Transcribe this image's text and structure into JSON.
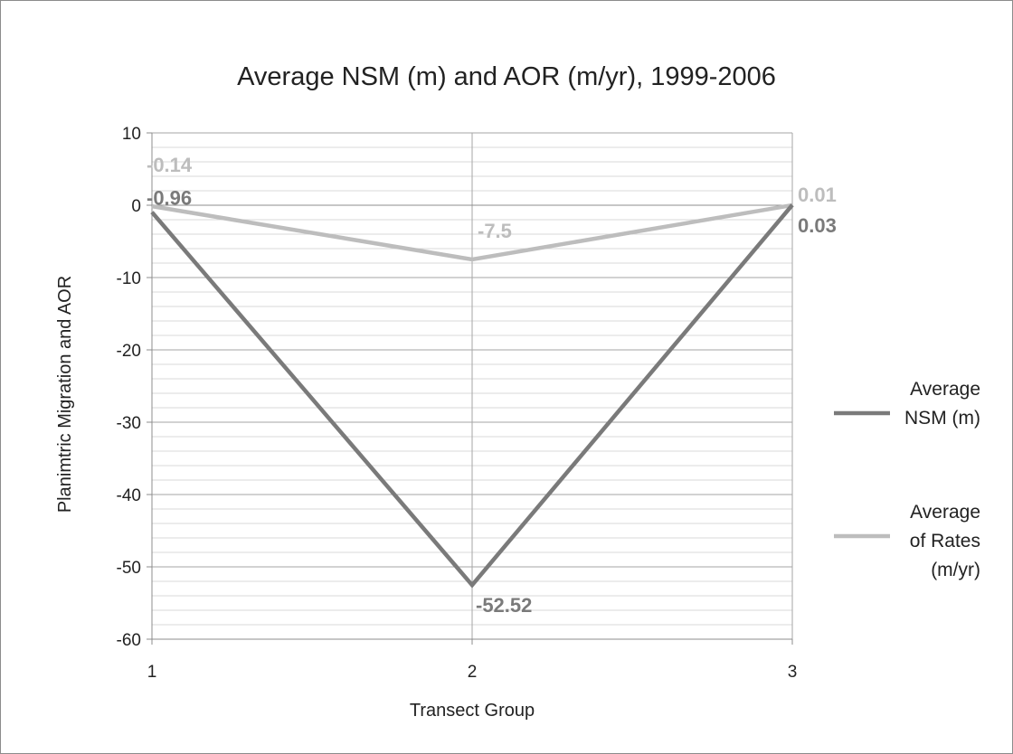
{
  "chart_data": {
    "type": "line",
    "title": "Average NSM (m) and AOR (m/yr), 1999-2006",
    "xlabel": "Transect Group",
    "ylabel": "Planimtric Migration and AOR",
    "categories": [
      "1",
      "2",
      "3"
    ],
    "ylim": [
      -60,
      10
    ],
    "yticks": [
      "10",
      "0",
      "-10",
      "-20",
      "-30",
      "-40",
      "-50",
      "-60"
    ],
    "grid": true,
    "legend_position": "right",
    "series": [
      {
        "name": "Average NSM (m)",
        "legend_lines": [
          "Average",
          "NSM (m)"
        ],
        "values": [
          -0.96,
          -52.52,
          0.03
        ],
        "labels": [
          "-0.96",
          "-52.52",
          "0.03"
        ],
        "color": "#7a7a7a"
      },
      {
        "name": "Average of Rates (m/yr)",
        "legend_lines": [
          "Average",
          "of Rates",
          "(m/yr)"
        ],
        "values": [
          -0.14,
          -7.5,
          0.01
        ],
        "labels": [
          "-0.14",
          "-7.5",
          "0.01"
        ],
        "color": "#bdbdbd"
      }
    ]
  }
}
